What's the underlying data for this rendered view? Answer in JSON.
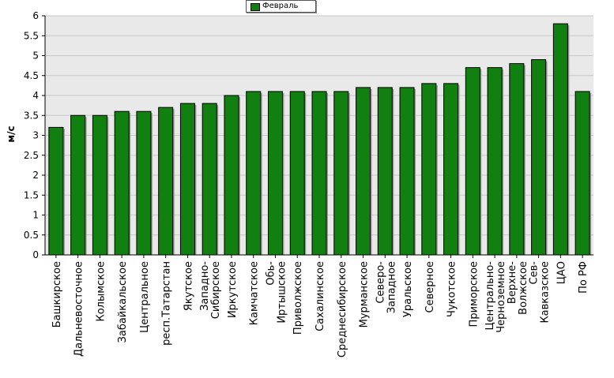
{
  "chart_data": {
    "type": "bar",
    "legend": [
      "Февраль"
    ],
    "ylabel": "м/с",
    "xlabel": "",
    "ylim": [
      0,
      6
    ],
    "yticks": [
      "0",
      "0.5",
      "1",
      "1.5",
      "2",
      "2.5",
      "3",
      "3.5",
      "4",
      "4.5",
      "5",
      "5.5",
      "6"
    ],
    "grid": true,
    "categories": [
      "Башкирское",
      "Дальневосточное",
      "Колымское",
      "Забайкальское",
      "Центральное",
      "респ.Татарстан",
      "Якутское",
      "Западно-\nСибирское",
      "Иркутское",
      "Камчатское",
      "Обь-\nИртышское",
      "Приволжское",
      "Сахалинское",
      "Среднесибирское",
      "Мурманское",
      "Северо-\nЗападное",
      "Уральское",
      "Северное",
      "Чукотское",
      "Приморское",
      "Центрально-\nЧерноземное",
      "Верхне-\nВолжское",
      "Сев-\nКавказское",
      "ЦАО",
      "По РФ"
    ],
    "series": [
      {
        "name": "Февраль",
        "color": "#118011",
        "values": [
          3.2,
          3.5,
          3.5,
          3.6,
          3.6,
          3.7,
          3.8,
          3.8,
          4.0,
          4.1,
          4.1,
          4.1,
          4.1,
          4.1,
          4.2,
          4.2,
          4.2,
          4.3,
          4.3,
          4.7,
          4.7,
          4.8,
          4.9,
          5.8,
          4.1
        ]
      }
    ]
  }
}
